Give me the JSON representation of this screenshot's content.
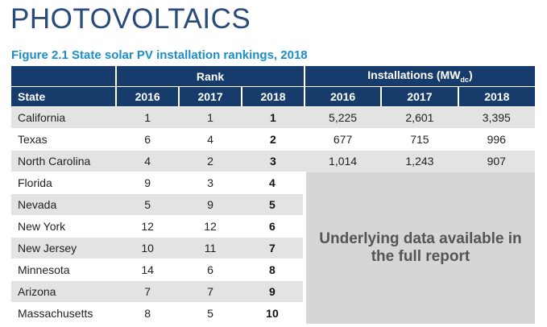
{
  "header": {
    "title": "PHOTOVOLTAICS",
    "figure_title": "Figure 2.1 State solar PV installation rankings, 2018"
  },
  "table": {
    "group_rank": "Rank",
    "group_installations": "Installations (MW",
    "group_installations_sub": "dc",
    "group_installations_close": ")",
    "state_header": "State",
    "year_headers": [
      "2016",
      "2017",
      "2018"
    ],
    "rows": [
      {
        "state": "California",
        "r2016": "1",
        "r2017": "1",
        "r2018": "1",
        "i2016": "5,225",
        "i2017": "2,601",
        "i2018": "3,395"
      },
      {
        "state": "Texas",
        "r2016": "6",
        "r2017": "4",
        "r2018": "2",
        "i2016": "677",
        "i2017": "715",
        "i2018": "996"
      },
      {
        "state": "North Carolina",
        "r2016": "4",
        "r2017": "2",
        "r2018": "3",
        "i2016": "1,014",
        "i2017": "1,243",
        "i2018": "907"
      },
      {
        "state": "Florida",
        "r2016": "9",
        "r2017": "3",
        "r2018": "4"
      },
      {
        "state": "Nevada",
        "r2016": "5",
        "r2017": "9",
        "r2018": "5"
      },
      {
        "state": "New York",
        "r2016": "12",
        "r2017": "12",
        "r2018": "6"
      },
      {
        "state": "New Jersey",
        "r2016": "10",
        "r2017": "11",
        "r2018": "7"
      },
      {
        "state": "Minnesota",
        "r2016": "14",
        "r2017": "6",
        "r2018": "8"
      },
      {
        "state": "Arizona",
        "r2016": "7",
        "r2017": "7",
        "r2018": "9"
      },
      {
        "state": "Massachusetts",
        "r2016": "8",
        "r2017": "5",
        "r2018": "10"
      }
    ],
    "overlay_note": "Underlying data available in the full report"
  }
}
